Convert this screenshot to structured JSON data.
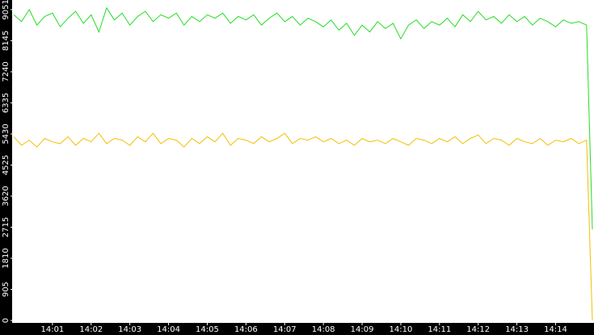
{
  "chart_data": {
    "type": "line",
    "x": [
      840.0,
      840.2,
      840.4,
      840.6,
      840.8,
      841.0,
      841.2,
      841.4,
      841.6,
      841.8,
      842.0,
      842.2,
      842.4,
      842.6,
      842.8,
      843.0,
      843.2,
      843.4,
      843.6,
      843.8,
      844.0,
      844.2,
      844.4,
      844.6,
      844.8,
      845.0,
      845.2,
      845.4,
      845.6,
      845.8,
      846.0,
      846.2,
      846.4,
      846.6,
      846.8,
      847.0,
      847.2,
      847.4,
      847.6,
      847.8,
      848.0,
      848.2,
      848.4,
      848.6,
      848.8,
      849.0,
      849.2,
      849.4,
      849.6,
      849.8,
      850.0,
      850.2,
      850.4,
      850.6,
      850.8,
      851.0,
      851.2,
      851.4,
      851.6,
      851.8,
      852.0,
      852.2,
      852.4,
      852.6,
      852.8,
      853.0,
      853.2,
      853.4,
      853.6,
      853.8,
      854.0,
      854.2,
      854.4,
      854.6,
      854.8,
      854.95
    ],
    "series": [
      {
        "name": "green",
        "color": "#22dd22",
        "values": [
          8900,
          8700,
          9050,
          8600,
          8850,
          8950,
          8550,
          8800,
          9000,
          8650,
          8900,
          8400,
          9100,
          8750,
          8950,
          8600,
          8850,
          9000,
          8700,
          8900,
          8800,
          8950,
          8600,
          8850,
          8700,
          8900,
          8800,
          8950,
          8650,
          8850,
          8750,
          8900,
          8600,
          8800,
          8950,
          8700,
          8850,
          8600,
          8800,
          8700,
          8550,
          8750,
          8450,
          8650,
          8300,
          8600,
          8400,
          8700,
          8500,
          8650,
          8200,
          8600,
          8750,
          8500,
          8700,
          8600,
          8800,
          8550,
          8900,
          8700,
          9000,
          8750,
          8850,
          8650,
          8900,
          8700,
          8850,
          8600,
          8800,
          8700,
          8550,
          8750,
          8650,
          8700,
          8600,
          2650
        ]
      },
      {
        "name": "yellow",
        "color": "#f2bf00",
        "values": [
          5350,
          5100,
          5250,
          5050,
          5300,
          5200,
          5150,
          5350,
          5100,
          5300,
          5200,
          5450,
          5150,
          5300,
          5250,
          5100,
          5350,
          5200,
          5450,
          5150,
          5300,
          5250,
          5050,
          5300,
          5150,
          5350,
          5200,
          5450,
          5100,
          5300,
          5250,
          5150,
          5350,
          5200,
          5300,
          5450,
          5150,
          5300,
          5250,
          5350,
          5200,
          5300,
          5150,
          5250,
          5100,
          5300,
          5200,
          5250,
          5150,
          5300,
          5200,
          5100,
          5300,
          5250,
          5150,
          5300,
          5200,
          5350,
          5150,
          5300,
          5400,
          5150,
          5300,
          5250,
          5100,
          5300,
          5200,
          5150,
          5300,
          5100,
          5250,
          5200,
          5300,
          5150,
          5250,
          0
        ]
      }
    ],
    "ylim": [
      0,
      9330
    ],
    "yticks": [
      0,
      905,
      1810,
      2715,
      3620,
      4525,
      5430,
      6335,
      7240,
      8145,
      9051
    ],
    "xlim": [
      840,
      854.95
    ],
    "xticks": [
      {
        "value": 841,
        "label": "14:01"
      },
      {
        "value": 842,
        "label": "14:02"
      },
      {
        "value": 843,
        "label": "14:03"
      },
      {
        "value": 844,
        "label": "14:04"
      },
      {
        "value": 845,
        "label": "14:05"
      },
      {
        "value": 846,
        "label": "14:06"
      },
      {
        "value": 847,
        "label": "14:07"
      },
      {
        "value": 848,
        "label": "14:08"
      },
      {
        "value": 849,
        "label": "14:09"
      },
      {
        "value": 850,
        "label": "14:10"
      },
      {
        "value": 851,
        "label": "14:11"
      },
      {
        "value": 852,
        "label": "14:12"
      },
      {
        "value": 853,
        "label": "14:13"
      },
      {
        "value": 854,
        "label": "14:14"
      }
    ]
  }
}
